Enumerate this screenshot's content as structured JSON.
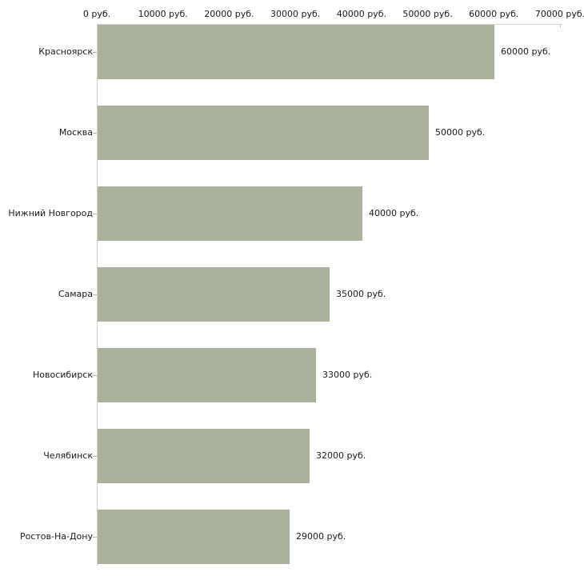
{
  "chart_data": {
    "type": "bar",
    "orientation": "horizontal",
    "title": "",
    "xlabel": "",
    "ylabel": "",
    "categories": [
      "Красноярск",
      "Москва",
      "Нижний Новгород",
      "Самара",
      "Новосибирск",
      "Челябинск",
      "Ростов-На-Дону"
    ],
    "values": [
      60000,
      50000,
      40000,
      35000,
      33000,
      32000,
      29000
    ],
    "value_labels": [
      "60000 руб.",
      "50000 руб.",
      "40000 руб.",
      "35000 руб.",
      "33000 руб.",
      "32000 руб.",
      "29000 руб."
    ],
    "x_ticks": [
      0,
      10000,
      20000,
      30000,
      40000,
      50000,
      60000,
      70000
    ],
    "x_tick_labels": [
      "0 руб.",
      "10000 руб.",
      "20000 руб.",
      "30000 руб.",
      "40000 руб.",
      "50000 руб.",
      "60000 руб.",
      "70000 руб."
    ],
    "xlim": [
      0,
      70000
    ],
    "x_axis_position": "top",
    "grid": false,
    "legend": false,
    "colors": {
      "bar_fill": "#aab29b",
      "axis_line": "#d0d0c6",
      "tick_mark": "#c9cbb9",
      "category_tick": "#b8b8ae",
      "text": "#1a1a1a",
      "background": "#ffffff"
    }
  }
}
